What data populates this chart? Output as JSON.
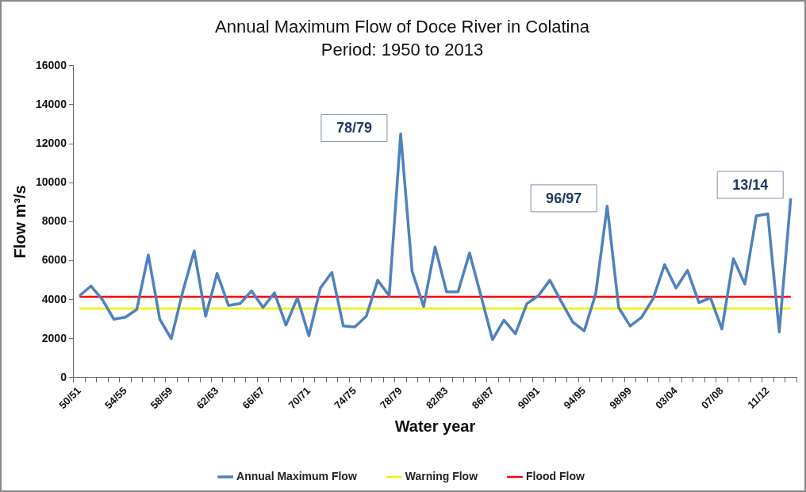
{
  "chart_data": {
    "type": "line",
    "title": "Annual Maximum Flow of Doce River in Colatina",
    "subtitle": "Period: 1950 to 2013",
    "xlabel": "Water year",
    "ylabel": "Flow m³/s",
    "categories": [
      "50/51",
      null,
      null,
      null,
      "54/55",
      null,
      null,
      null,
      "58/59",
      null,
      null,
      null,
      "62/63",
      null,
      null,
      null,
      "66/67",
      null,
      null,
      null,
      "70/71",
      null,
      null,
      null,
      "74/75",
      null,
      null,
      null,
      "78/79",
      null,
      null,
      null,
      "82/83",
      null,
      null,
      null,
      "86/87",
      null,
      null,
      null,
      "90/91",
      null,
      null,
      null,
      "94/95",
      null,
      null,
      null,
      "98/99",
      null,
      null,
      null,
      "03/04",
      null,
      null,
      null,
      "07/08",
      null,
      null,
      null,
      "11/12",
      null,
      null
    ],
    "series": [
      {
        "name": "Annual Maximum Flow",
        "color": "#4f81bd",
        "values": [
          4200,
          4700,
          4000,
          3000,
          3100,
          3500,
          6300,
          3000,
          2000,
          4400,
          6500,
          3150,
          5350,
          3700,
          3800,
          4450,
          3600,
          4350,
          2700,
          4100,
          2150,
          4600,
          5400,
          2650,
          2600,
          3150,
          5000,
          4200,
          12500,
          5450,
          3650,
          6700,
          4400,
          4400,
          6400,
          4200,
          1950,
          2950,
          2250,
          3800,
          4200,
          5000,
          3900,
          2850,
          2400,
          4300,
          8800,
          3600,
          2650,
          3100,
          4050,
          5800,
          4600,
          5500,
          3850,
          4100,
          2500,
          6100,
          4800,
          8300,
          8400,
          2350,
          9200
        ]
      },
      {
        "name": "Warning Flow",
        "color": "#f2f200",
        "values": [
          3550,
          3550,
          3550,
          3550,
          3550,
          3550,
          3550,
          3550,
          3550,
          3550,
          3550,
          3550,
          3550,
          3550,
          3550,
          3550,
          3550,
          3550,
          3550,
          3550,
          3550,
          3550,
          3550,
          3550,
          3550,
          3550,
          3550,
          3550,
          3550,
          3550,
          3550,
          3550,
          3550,
          3550,
          3550,
          3550,
          3550,
          3550,
          3550,
          3550,
          3550,
          3550,
          3550,
          3550,
          3550,
          3550,
          3550,
          3550,
          3550,
          3550,
          3550,
          3550,
          3550,
          3550,
          3550,
          3550,
          3550,
          3550,
          3550,
          3550,
          3550,
          3550,
          3550
        ]
      },
      {
        "name": "Flood Flow",
        "color": "#ff0000",
        "values": [
          4150,
          4150,
          4150,
          4150,
          4150,
          4150,
          4150,
          4150,
          4150,
          4150,
          4150,
          4150,
          4150,
          4150,
          4150,
          4150,
          4150,
          4150,
          4150,
          4150,
          4150,
          4150,
          4150,
          4150,
          4150,
          4150,
          4150,
          4150,
          4150,
          4150,
          4150,
          4150,
          4150,
          4150,
          4150,
          4150,
          4150,
          4150,
          4150,
          4150,
          4150,
          4150,
          4150,
          4150,
          4150,
          4150,
          4150,
          4150,
          4150,
          4150,
          4150,
          4150,
          4150,
          4150,
          4150,
          4150,
          4150,
          4150,
          4150,
          4150,
          4150,
          4150,
          4150
        ]
      }
    ],
    "ylim": [
      0,
      16000
    ],
    "yticks": [
      0,
      2000,
      4000,
      6000,
      8000,
      10000,
      12000,
      14000,
      16000
    ],
    "annotations": [
      "78/79",
      "96/97",
      "13/14"
    ],
    "grid": false,
    "legend": "bottom",
    "marker": "none",
    "line_style": "solid"
  }
}
